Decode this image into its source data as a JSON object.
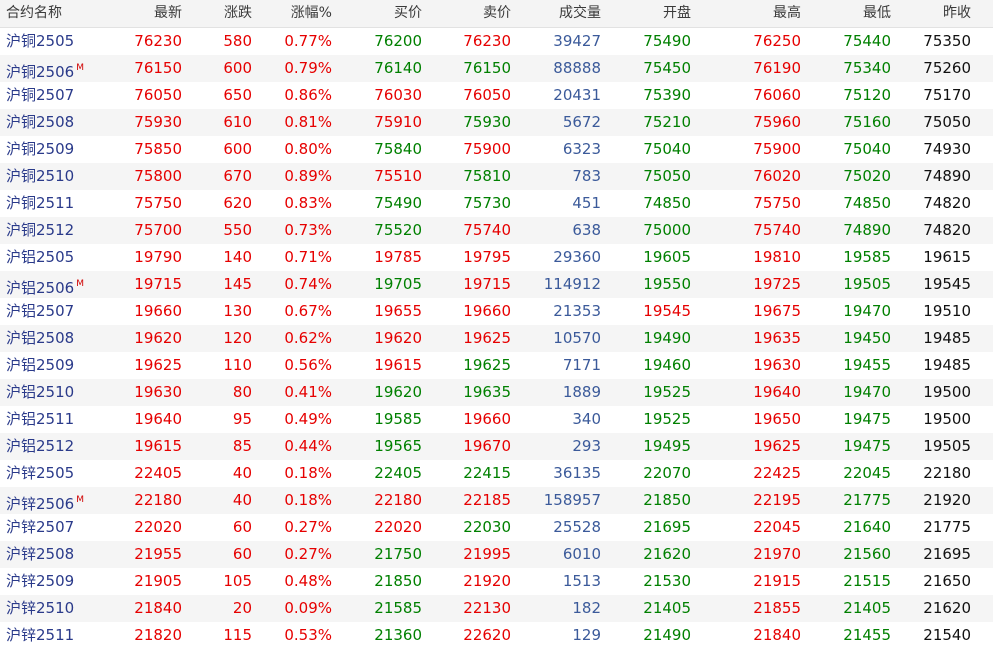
{
  "headers": [
    "合约名称",
    "最新",
    "涨跌",
    "涨幅%",
    "买价",
    "卖价",
    "成交量",
    "开盘",
    "最高",
    "最低",
    "昨收"
  ],
  "rows": [
    {
      "name": "沪铜2505",
      "m": "",
      "last": "76230",
      "chg": "580",
      "pct": "0.77%",
      "bid": "76200",
      "ask": "76230",
      "vol": "39427",
      "open": "75490",
      "high": "76250",
      "low": "75440",
      "prev": "75350",
      "bidc": "green",
      "askc": "red",
      "openc": "green",
      "highc": "red",
      "lowc": "green"
    },
    {
      "name": "沪铜2506",
      "m": "M",
      "last": "76150",
      "chg": "600",
      "pct": "0.79%",
      "bid": "76140",
      "ask": "76150",
      "vol": "88888",
      "open": "75450",
      "high": "76190",
      "low": "75340",
      "prev": "75260",
      "bidc": "green",
      "askc": "green",
      "openc": "green",
      "highc": "red",
      "lowc": "green"
    },
    {
      "name": "沪铜2507",
      "m": "",
      "last": "76050",
      "chg": "650",
      "pct": "0.86%",
      "bid": "76030",
      "ask": "76050",
      "vol": "20431",
      "open": "75390",
      "high": "76060",
      "low": "75120",
      "prev": "75170",
      "bidc": "red",
      "askc": "red",
      "openc": "green",
      "highc": "red",
      "lowc": "green"
    },
    {
      "name": "沪铜2508",
      "m": "",
      "last": "75930",
      "chg": "610",
      "pct": "0.81%",
      "bid": "75910",
      "ask": "75930",
      "vol": "5672",
      "open": "75210",
      "high": "75960",
      "low": "75160",
      "prev": "75050",
      "bidc": "red",
      "askc": "green",
      "openc": "green",
      "highc": "red",
      "lowc": "green"
    },
    {
      "name": "沪铜2509",
      "m": "",
      "last": "75850",
      "chg": "600",
      "pct": "0.80%",
      "bid": "75840",
      "ask": "75900",
      "vol": "6323",
      "open": "75040",
      "high": "75900",
      "low": "75040",
      "prev": "74930",
      "bidc": "green",
      "askc": "red",
      "openc": "green",
      "highc": "red",
      "lowc": "green"
    },
    {
      "name": "沪铜2510",
      "m": "",
      "last": "75800",
      "chg": "670",
      "pct": "0.89%",
      "bid": "75510",
      "ask": "75810",
      "vol": "783",
      "open": "75050",
      "high": "76020",
      "low": "75020",
      "prev": "74890",
      "bidc": "red",
      "askc": "green",
      "openc": "green",
      "highc": "red",
      "lowc": "green"
    },
    {
      "name": "沪铜2511",
      "m": "",
      "last": "75750",
      "chg": "620",
      "pct": "0.83%",
      "bid": "75490",
      "ask": "75730",
      "vol": "451",
      "open": "74850",
      "high": "75750",
      "low": "74850",
      "prev": "74820",
      "bidc": "green",
      "askc": "green",
      "openc": "green",
      "highc": "red",
      "lowc": "green"
    },
    {
      "name": "沪铜2512",
      "m": "",
      "last": "75700",
      "chg": "550",
      "pct": "0.73%",
      "bid": "75520",
      "ask": "75740",
      "vol": "638",
      "open": "75000",
      "high": "75740",
      "low": "74890",
      "prev": "74820",
      "bidc": "green",
      "askc": "red",
      "openc": "green",
      "highc": "red",
      "lowc": "green"
    },
    {
      "name": "沪铝2505",
      "m": "",
      "last": "19790",
      "chg": "140",
      "pct": "0.71%",
      "bid": "19785",
      "ask": "19795",
      "vol": "29360",
      "open": "19605",
      "high": "19810",
      "low": "19585",
      "prev": "19615",
      "bidc": "red",
      "askc": "red",
      "openc": "green",
      "highc": "red",
      "lowc": "green"
    },
    {
      "name": "沪铝2506",
      "m": "M",
      "last": "19715",
      "chg": "145",
      "pct": "0.74%",
      "bid": "19705",
      "ask": "19715",
      "vol": "114912",
      "open": "19550",
      "high": "19725",
      "low": "19505",
      "prev": "19545",
      "bidc": "green",
      "askc": "red",
      "openc": "green",
      "highc": "red",
      "lowc": "green"
    },
    {
      "name": "沪铝2507",
      "m": "",
      "last": "19660",
      "chg": "130",
      "pct": "0.67%",
      "bid": "19655",
      "ask": "19660",
      "vol": "21353",
      "open": "19545",
      "high": "19675",
      "low": "19470",
      "prev": "19510",
      "bidc": "red",
      "askc": "red",
      "openc": "red",
      "highc": "red",
      "lowc": "green"
    },
    {
      "name": "沪铝2508",
      "m": "",
      "last": "19620",
      "chg": "120",
      "pct": "0.62%",
      "bid": "19620",
      "ask": "19625",
      "vol": "10570",
      "open": "19490",
      "high": "19635",
      "low": "19450",
      "prev": "19485",
      "bidc": "red",
      "askc": "red",
      "openc": "green",
      "highc": "red",
      "lowc": "green"
    },
    {
      "name": "沪铝2509",
      "m": "",
      "last": "19625",
      "chg": "110",
      "pct": "0.56%",
      "bid": "19615",
      "ask": "19625",
      "vol": "7171",
      "open": "19460",
      "high": "19630",
      "low": "19455",
      "prev": "19485",
      "bidc": "red",
      "askc": "green",
      "openc": "green",
      "highc": "red",
      "lowc": "green"
    },
    {
      "name": "沪铝2510",
      "m": "",
      "last": "19630",
      "chg": "80",
      "pct": "0.41%",
      "bid": "19620",
      "ask": "19635",
      "vol": "1889",
      "open": "19525",
      "high": "19640",
      "low": "19470",
      "prev": "19500",
      "bidc": "green",
      "askc": "green",
      "openc": "green",
      "highc": "red",
      "lowc": "green"
    },
    {
      "name": "沪铝2511",
      "m": "",
      "last": "19640",
      "chg": "95",
      "pct": "0.49%",
      "bid": "19585",
      "ask": "19660",
      "vol": "340",
      "open": "19525",
      "high": "19650",
      "low": "19475",
      "prev": "19500",
      "bidc": "green",
      "askc": "red",
      "openc": "green",
      "highc": "red",
      "lowc": "green"
    },
    {
      "name": "沪铝2512",
      "m": "",
      "last": "19615",
      "chg": "85",
      "pct": "0.44%",
      "bid": "19565",
      "ask": "19670",
      "vol": "293",
      "open": "19495",
      "high": "19625",
      "low": "19475",
      "prev": "19505",
      "bidc": "green",
      "askc": "red",
      "openc": "green",
      "highc": "red",
      "lowc": "green"
    },
    {
      "name": "沪锌2505",
      "m": "",
      "last": "22405",
      "chg": "40",
      "pct": "0.18%",
      "bid": "22405",
      "ask": "22415",
      "vol": "36135",
      "open": "22070",
      "high": "22425",
      "low": "22045",
      "prev": "22180",
      "bidc": "green",
      "askc": "green",
      "openc": "green",
      "highc": "red",
      "lowc": "green"
    },
    {
      "name": "沪锌2506",
      "m": "M",
      "last": "22180",
      "chg": "40",
      "pct": "0.18%",
      "bid": "22180",
      "ask": "22185",
      "vol": "158957",
      "open": "21850",
      "high": "22195",
      "low": "21775",
      "prev": "21920",
      "bidc": "red",
      "askc": "red",
      "openc": "green",
      "highc": "red",
      "lowc": "green"
    },
    {
      "name": "沪锌2507",
      "m": "",
      "last": "22020",
      "chg": "60",
      "pct": "0.27%",
      "bid": "22020",
      "ask": "22030",
      "vol": "25528",
      "open": "21695",
      "high": "22045",
      "low": "21640",
      "prev": "21775",
      "bidc": "red",
      "askc": "green",
      "openc": "green",
      "highc": "red",
      "lowc": "green"
    },
    {
      "name": "沪锌2508",
      "m": "",
      "last": "21955",
      "chg": "60",
      "pct": "0.27%",
      "bid": "21750",
      "ask": "21995",
      "vol": "6010",
      "open": "21620",
      "high": "21970",
      "low": "21560",
      "prev": "21695",
      "bidc": "green",
      "askc": "red",
      "openc": "green",
      "highc": "red",
      "lowc": "green"
    },
    {
      "name": "沪锌2509",
      "m": "",
      "last": "21905",
      "chg": "105",
      "pct": "0.48%",
      "bid": "21850",
      "ask": "21920",
      "vol": "1513",
      "open": "21530",
      "high": "21915",
      "low": "21515",
      "prev": "21650",
      "bidc": "green",
      "askc": "red",
      "openc": "green",
      "highc": "red",
      "lowc": "green"
    },
    {
      "name": "沪锌2510",
      "m": "",
      "last": "21840",
      "chg": "20",
      "pct": "0.09%",
      "bid": "21585",
      "ask": "22130",
      "vol": "182",
      "open": "21405",
      "high": "21855",
      "low": "21405",
      "prev": "21620",
      "bidc": "green",
      "askc": "red",
      "openc": "green",
      "highc": "red",
      "lowc": "green"
    },
    {
      "name": "沪锌2511",
      "m": "",
      "last": "21820",
      "chg": "115",
      "pct": "0.53%",
      "bid": "21360",
      "ask": "22620",
      "vol": "129",
      "open": "21490",
      "high": "21840",
      "low": "21455",
      "prev": "21540",
      "bidc": "green",
      "askc": "red",
      "openc": "green",
      "highc": "red",
      "lowc": "green"
    }
  ]
}
